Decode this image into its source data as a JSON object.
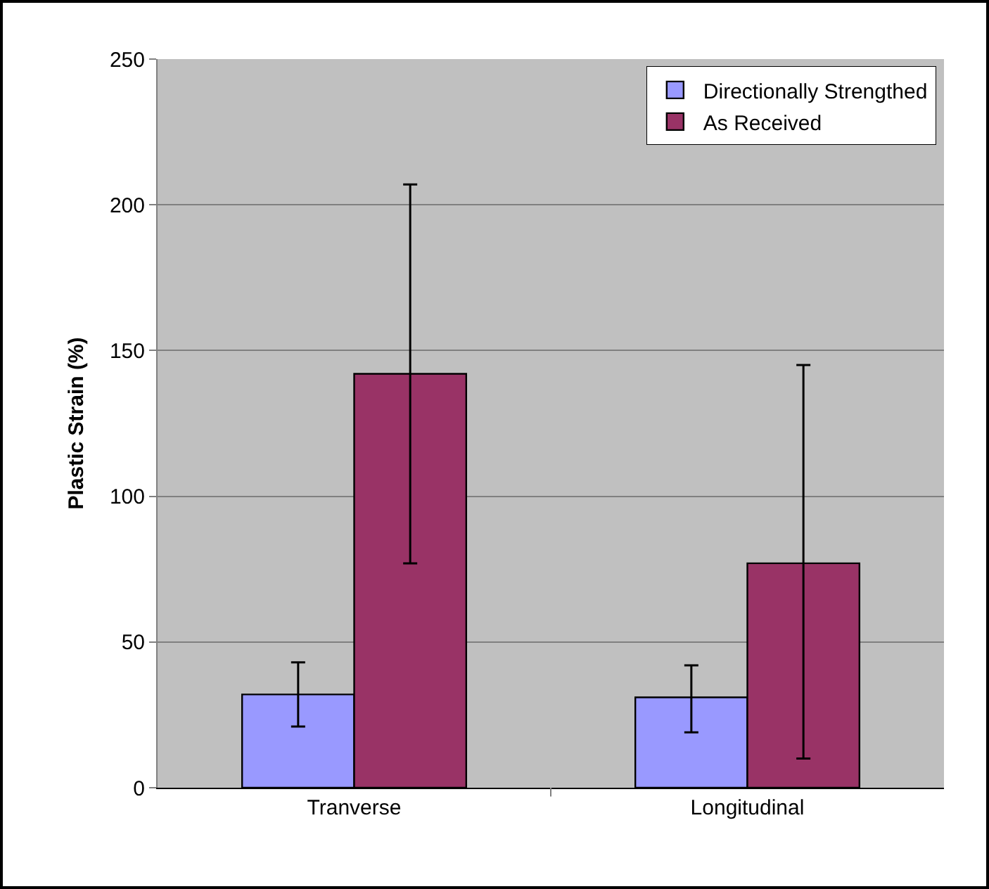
{
  "chart_data": {
    "type": "bar",
    "ylabel": "Plastic Strain (%)",
    "categories": [
      "Tranverse",
      "Longitudinal"
    ],
    "series": [
      {
        "name": "Directionally Strengthed",
        "color": "#9999ff",
        "values": [
          32,
          31
        ],
        "errors": [
          [
            21,
            43
          ],
          [
            19,
            42
          ]
        ]
      },
      {
        "name": "As Received",
        "color": "#993366",
        "values": [
          142,
          77
        ],
        "errors": [
          [
            77,
            207
          ],
          [
            10,
            145
          ]
        ]
      }
    ],
    "ylim": [
      0,
      250
    ],
    "yticks": [
      0,
      50,
      100,
      150,
      200,
      250
    ],
    "grid": "y",
    "legend": "top right"
  }
}
